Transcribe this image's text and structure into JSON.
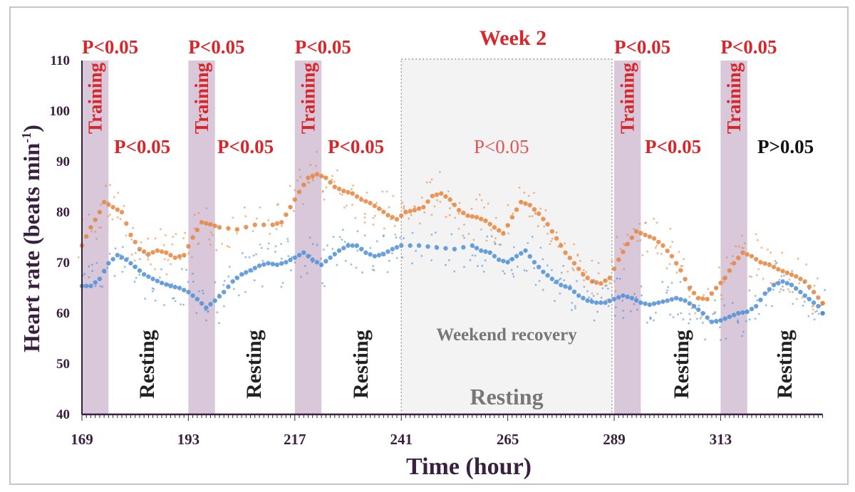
{
  "chart_data": {
    "type": "scatter",
    "title": "Week 2",
    "xlabel": "Time (hour)",
    "ylabel": "Heart rate (beats min",
    "ylabel_sup": "-1",
    "ylabel_close": ")",
    "xlim": [
      169,
      336
    ],
    "ylim": [
      40,
      110
    ],
    "xticks": [
      169,
      193,
      217,
      241,
      265,
      289,
      313
    ],
    "yticks": [
      40,
      50,
      60,
      70,
      80,
      90,
      100,
      110
    ],
    "grid": false,
    "colors": {
      "orange": "#e8843c",
      "blue": "#4d8fd6",
      "training": "#d8c8da",
      "weekend": "#f3f3f3",
      "red": "#d8262a",
      "axis": "#3a2040"
    },
    "training_periods": [
      [
        169,
        175
      ],
      [
        193,
        199
      ],
      [
        217,
        223
      ],
      [
        289,
        295
      ],
      [
        313,
        319
      ]
    ],
    "training_label": "Training",
    "weekend_period": [
      241,
      288.5
    ],
    "weekend_label": "Weekend recovery",
    "weekend_resting_label": "Resting",
    "resting_label": "Resting",
    "top_pvalues": [
      "P<0.05",
      "P<0.05",
      "P<0.05",
      "P<0.05",
      "P<0.05"
    ],
    "mid_pvalues": [
      "P<0.05",
      "P<0.05",
      "P<0.05",
      "P<0.05",
      "P<0.05",
      "P>0.05"
    ],
    "series": [
      {
        "name": "orange",
        "x": [
          169,
          171,
          173,
          174,
          176,
          178,
          180,
          182,
          184,
          186,
          188,
          190,
          192,
          194,
          196,
          198,
          200,
          204,
          208,
          212,
          214,
          216,
          218,
          220,
          222,
          224,
          226,
          228,
          230,
          232,
          234,
          236,
          238,
          240,
          242,
          244,
          246,
          248,
          250,
          252,
          254,
          256,
          258,
          260,
          262,
          264,
          266,
          268,
          270,
          272,
          274,
          276,
          278,
          280,
          282,
          284,
          286,
          288,
          290,
          292,
          294,
          296,
          298,
          300,
          302,
          304,
          306,
          308,
          310,
          312,
          314,
          316,
          318,
          320,
          322,
          324,
          326,
          328,
          330,
          332,
          334,
          336
        ],
        "values": [
          73.4,
          77,
          80,
          82,
          81,
          80,
          75.5,
          72.7,
          71.7,
          72.4,
          72,
          71,
          71.5,
          75,
          78,
          77.6,
          77,
          76.6,
          77.5,
          77.5,
          78,
          81,
          84,
          86.8,
          87.5,
          86.8,
          85,
          84.2,
          83.7,
          82.5,
          81.8,
          80.7,
          79.4,
          78.6,
          80,
          80.4,
          81,
          83.2,
          83.7,
          82.5,
          80.4,
          79.3,
          79,
          78.3,
          77,
          75.8,
          79,
          82,
          81.4,
          79.7,
          77.6,
          74.8,
          72,
          69.9,
          67.7,
          66.3,
          65.9,
          67,
          70.6,
          73.7,
          76.2,
          75.5,
          74.8,
          73.4,
          71.3,
          68.5,
          65,
          63,
          62.8,
          65,
          67,
          69.9,
          72,
          71.3,
          70.1,
          69.6,
          68.7,
          68,
          67.3,
          66.3,
          64.2,
          62
        ]
      },
      {
        "name": "blue",
        "x": [
          169,
          171,
          173,
          175,
          177,
          179,
          181,
          183,
          185,
          187,
          189,
          191,
          193,
          195,
          197,
          199,
          201,
          203,
          205,
          207,
          209,
          211,
          213,
          215,
          217,
          219,
          221,
          223,
          225,
          227,
          229,
          231,
          233,
          235,
          237,
          239,
          241,
          245,
          249,
          253,
          257,
          259,
          261,
          263,
          265,
          267,
          269,
          271,
          273,
          275,
          277,
          279,
          281,
          283,
          285,
          287,
          289,
          291,
          293,
          295,
          297,
          299,
          301,
          303,
          305,
          307,
          309,
          311,
          313,
          315,
          317,
          319,
          321,
          323,
          325,
          327,
          329,
          331,
          333,
          335,
          336
        ],
        "values": [
          65.4,
          65.4,
          66.8,
          69.9,
          71.5,
          70.6,
          69.2,
          67.7,
          66.8,
          66,
          65.4,
          65,
          64.2,
          62.8,
          61.1,
          62.5,
          64.2,
          66.3,
          67.7,
          68.5,
          69.4,
          69.9,
          69.6,
          70.1,
          71,
          72,
          70.6,
          69.6,
          71,
          72.4,
          73.4,
          73.4,
          72,
          71.3,
          71.7,
          72.7,
          73.4,
          73.4,
          73,
          72.7,
          73.4,
          72.4,
          72,
          70.6,
          70.1,
          71.3,
          72.4,
          70.1,
          68.2,
          66.8,
          65.6,
          65,
          63.5,
          62.5,
          62.1,
          62.1,
          62.8,
          63.5,
          63,
          62.1,
          61.7,
          62.1,
          62.5,
          63,
          62.5,
          61.4,
          60,
          58.3,
          58.6,
          59.3,
          60,
          60.3,
          61.4,
          63.9,
          65.6,
          66.3,
          65.6,
          64.2,
          62.8,
          61.4,
          60
        ]
      }
    ]
  }
}
